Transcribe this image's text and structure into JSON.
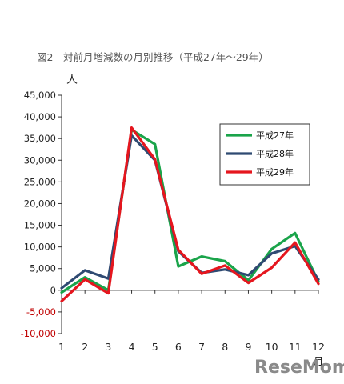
{
  "chart_data": {
    "type": "line",
    "title": "図2　対前月増減数の月別推移（平成27年～29年）",
    "ylabel": "人",
    "xlabel": "月",
    "ylim": [
      -10000,
      45000
    ],
    "yticks": [
      {
        "value": 45000,
        "label": "45,000"
      },
      {
        "value": 40000,
        "label": "40,000"
      },
      {
        "value": 35000,
        "label": "35,000"
      },
      {
        "value": 30000,
        "label": "30,000"
      },
      {
        "value": 25000,
        "label": "25,000"
      },
      {
        "value": 20000,
        "label": "20,000"
      },
      {
        "value": 15000,
        "label": "15,000"
      },
      {
        "value": 10000,
        "label": "10,000"
      },
      {
        "value": 5000,
        "label": "5,000"
      },
      {
        "value": 0,
        "label": "0"
      },
      {
        "value": -5000,
        "label": "-5,000"
      },
      {
        "value": -10000,
        "label": "-10,000"
      }
    ],
    "x": [
      1,
      2,
      3,
      4,
      5,
      6,
      7,
      8,
      9,
      10,
      11,
      12
    ],
    "xtick_labels": [
      "1",
      "2",
      "3",
      "4",
      "5",
      "6",
      "7",
      "8",
      "9",
      "10",
      "11",
      "12"
    ],
    "legend_position": "right",
    "series": [
      {
        "name": "平成27年",
        "color": "#1aa44a",
        "values": [
          -500,
          3000,
          0,
          37000,
          33700,
          5500,
          7800,
          6700,
          2300,
          9500,
          13200,
          2000
        ]
      },
      {
        "name": "平成28年",
        "color": "#2f4a72",
        "values": [
          500,
          4600,
          2700,
          35700,
          30000,
          9000,
          4000,
          4800,
          3500,
          8500,
          10200,
          2500
        ]
      },
      {
        "name": "平成29年",
        "color": "#e5161e",
        "values": [
          -2500,
          2500,
          -700,
          37500,
          30200,
          9300,
          3800,
          5700,
          1700,
          5200,
          11000,
          1500
        ]
      }
    ]
  },
  "watermark": "ReseMom"
}
